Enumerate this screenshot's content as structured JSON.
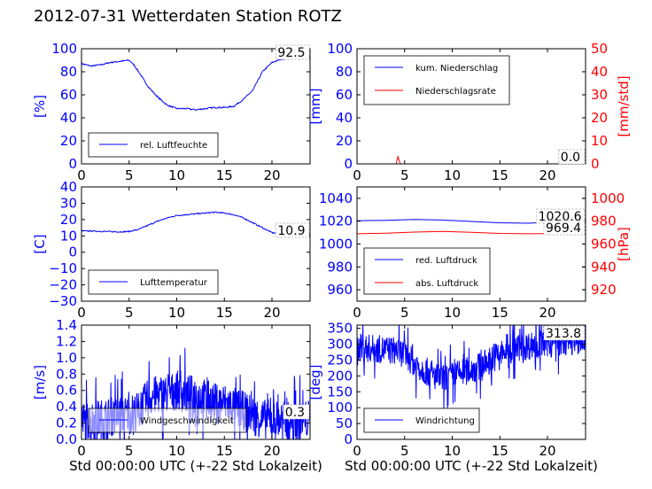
{
  "page": {
    "title": "2012-07-31 Wetterdaten Station ROTZ",
    "xlabel": "Std 00:00:00 UTC (+-22 Std Lokalzeit)"
  },
  "chart_data": [
    {
      "type": "line",
      "ylabel": "[%]",
      "ylim": [
        0,
        100
      ],
      "yticks": [
        "0",
        "20",
        "40",
        "60",
        "80",
        "100"
      ],
      "xlim": [
        0,
        24
      ],
      "xticks": [
        "0",
        "5",
        "10",
        "15",
        "20"
      ],
      "legend": "lower-left",
      "annotation": "92.5",
      "series": [
        {
          "name": "rel. Luftfeuchte",
          "color": "#0000ff",
          "noise": 0.035,
          "x": [
            0,
            1,
            2,
            3,
            4,
            5,
            5.5,
            6,
            7,
            8,
            9,
            10,
            11,
            12,
            13,
            14,
            15,
            16,
            17,
            18,
            19,
            20,
            21,
            22,
            23,
            24
          ],
          "y": [
            87,
            85,
            86,
            88,
            89,
            90,
            86,
            80,
            67,
            58,
            51,
            48,
            48,
            47,
            48,
            49,
            49,
            50,
            56,
            64,
            80,
            88,
            91,
            92,
            92.5,
            92.5
          ]
        }
      ]
    },
    {
      "type": "line",
      "ylabel": "[mm]",
      "ylabel2": "[mm/std]",
      "ylim": [
        0,
        100
      ],
      "ylim2": [
        0,
        50
      ],
      "yticks": [
        "0",
        "20",
        "40",
        "60",
        "80",
        "100"
      ],
      "yticks2": [
        "0",
        "10",
        "20",
        "30",
        "40",
        "50"
      ],
      "xlim": [
        0,
        24
      ],
      "xticks": [
        "0",
        "5",
        "10",
        "15",
        "20"
      ],
      "legend": "upper-left",
      "annotation": "0.0",
      "annotation2": "0.0",
      "series": [
        {
          "name": "kum. Niederschlag",
          "color": "#0000ff",
          "axis": "left",
          "x": [
            0,
            24
          ],
          "y": [
            0,
            0
          ]
        },
        {
          "name": "Niederschlagsrate",
          "color": "#ff0000",
          "axis": "right",
          "x": [
            0,
            4.1,
            4.2,
            4.3,
            4.4,
            4.5,
            4.6,
            24
          ],
          "y": [
            0,
            0,
            1.5,
            3.2,
            1.8,
            0.5,
            0,
            0
          ]
        }
      ]
    },
    {
      "type": "line",
      "ylabel": "[C]",
      "ylim": [
        -30,
        40
      ],
      "yticks": [
        "−30",
        "−20",
        "−10",
        "0",
        "10",
        "20",
        "30",
        "40"
      ],
      "xlim": [
        0,
        24
      ],
      "xticks": [
        "0",
        "5",
        "10",
        "15",
        "20"
      ],
      "legend": "lower-left",
      "annotation": "10.9",
      "series": [
        {
          "name": "Lufttemperatur",
          "color": "#0000ff",
          "noise": 0.03,
          "x": [
            0,
            1,
            2,
            3,
            4,
            5,
            6,
            7,
            8,
            9,
            10,
            11,
            12,
            13,
            14,
            15,
            16,
            17,
            18,
            19,
            20,
            21,
            22,
            23,
            24
          ],
          "y": [
            13,
            13,
            12.8,
            12.6,
            12.5,
            12.7,
            14,
            16.5,
            19,
            21,
            22.5,
            23,
            23.5,
            24,
            24.5,
            24,
            23,
            21,
            18,
            15,
            12,
            11,
            10.9,
            10.9,
            10.9
          ]
        }
      ]
    },
    {
      "type": "line",
      "ylabel2": "[hPa]",
      "ylim": [
        950,
        1050
      ],
      "ylim2": [
        910,
        1010
      ],
      "yticks": [
        "960",
        "980",
        "1000",
        "1020",
        "1040"
      ],
      "yticks2": [
        "920",
        "940",
        "960",
        "980",
        "1000"
      ],
      "xlim": [
        0,
        24
      ],
      "xticks": [
        "0",
        "5",
        "10",
        "15",
        "20"
      ],
      "legend": "lower-left",
      "annotation": "1020.6",
      "annotation2": "969.4",
      "series": [
        {
          "name": "red. Luftdruck",
          "color": "#0000ff",
          "axis": "left",
          "x": [
            0,
            3,
            6,
            9,
            12,
            15,
            18,
            21,
            24
          ],
          "y": [
            1020.5,
            1020.8,
            1021.5,
            1021,
            1019.8,
            1018.6,
            1018.2,
            1019.5,
            1020.6
          ]
        },
        {
          "name": "abs. Luftdruck",
          "color": "#ff0000",
          "axis": "right",
          "x": [
            0,
            3,
            6,
            9,
            12,
            15,
            18,
            21,
            24
          ],
          "y": [
            969,
            969.5,
            970.5,
            971,
            970.3,
            969.3,
            969,
            969.2,
            969.4
          ]
        }
      ]
    },
    {
      "type": "line",
      "ylabel": "[m/s]",
      "ylim": [
        0,
        1.4
      ],
      "yticks": [
        "0.0",
        "0.2",
        "0.4",
        "0.6",
        "0.8",
        "1.0",
        "1.2",
        "1.4"
      ],
      "xlim": [
        0,
        24
      ],
      "xticks": [
        "0",
        "5",
        "10",
        "15",
        "20"
      ],
      "legend": "lower-left",
      "annotation": "0.3",
      "series": [
        {
          "name": "Windgeschwindigkeit",
          "color": "#0000ff",
          "noise": 0.35,
          "spiky": true,
          "x": [
            0,
            2,
            4,
            5,
            6,
            7,
            8,
            9,
            10,
            11,
            12,
            13,
            14,
            15,
            16,
            17,
            18,
            19,
            20,
            22,
            24
          ],
          "y": [
            0.22,
            0.25,
            0.3,
            0.3,
            0.35,
            0.5,
            0.55,
            0.55,
            0.6,
            0.55,
            0.55,
            0.5,
            0.45,
            0.45,
            0.4,
            0.35,
            0.3,
            0.25,
            0.25,
            0.22,
            0.25
          ]
        }
      ]
    },
    {
      "type": "line",
      "ylabel": "[deg]",
      "ylim": [
        0,
        360
      ],
      "yticks": [
        "0",
        "50",
        "100",
        "150",
        "200",
        "250",
        "300",
        "350"
      ],
      "xlim": [
        0,
        24
      ],
      "xticks": [
        "0",
        "5",
        "10",
        "15",
        "20"
      ],
      "legend": "lower-left",
      "annotation": "313.8",
      "series": [
        {
          "name": "Windrichtung",
          "color": "#0000ff",
          "noise": 0.25,
          "spiky": true,
          "x": [
            0,
            2,
            4,
            5,
            6,
            7,
            8,
            9,
            10,
            11,
            12,
            13,
            14,
            15,
            16,
            17,
            18,
            19,
            20,
            22,
            24
          ],
          "y": [
            290,
            285,
            280,
            270,
            240,
            220,
            200,
            190,
            200,
            210,
            220,
            230,
            250,
            270,
            280,
            290,
            295,
            300,
            305,
            310,
            313.8
          ]
        }
      ]
    }
  ]
}
